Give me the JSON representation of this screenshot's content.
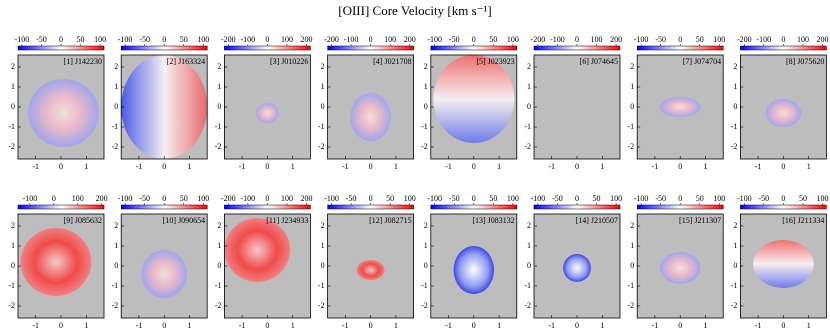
{
  "chart_data": {
    "type": "velocity-map-grid",
    "title": "[OIII] Core Velocity [km s⁻¹]",
    "xlim": [
      -1.7,
      1.7
    ],
    "ylim": [
      -2.6,
      2.6
    ],
    "xticks": [
      -1,
      0,
      1
    ],
    "yticks": [
      -2,
      -1,
      0,
      1,
      2
    ],
    "cmap": [
      "#0000ff",
      "#ffffff",
      "#ff0000"
    ],
    "background": "#bdbdbd",
    "panels": [
      {
        "label": "[1] J142230",
        "cblim": [
          -110,
          110
        ],
        "cbticks": [
          -100,
          -50,
          0,
          50,
          100
        ]
      },
      {
        "label": "[2] J163324",
        "cblim": [
          -110,
          110
        ],
        "cbticks": [
          -100,
          -50,
          0,
          50,
          100
        ]
      },
      {
        "label": "[3] J010226",
        "cblim": [
          -220,
          220
        ],
        "cbticks": [
          -200,
          -100,
          0,
          100,
          200
        ]
      },
      {
        "label": "[4] J021708",
        "cblim": [
          -220,
          220
        ],
        "cbticks": [
          -200,
          -100,
          0,
          100,
          200
        ]
      },
      {
        "label": "[5] J023923",
        "cblim": [
          -110,
          110
        ],
        "cbticks": [
          -100,
          -50,
          0,
          50,
          100
        ]
      },
      {
        "label": "[6] J074645",
        "cblim": [
          -220,
          220
        ],
        "cbticks": [
          -200,
          -100,
          0,
          100,
          200
        ]
      },
      {
        "label": "[7] J074704",
        "cblim": [
          -110,
          110
        ],
        "cbticks": [
          -100,
          -50,
          0,
          50,
          100
        ]
      },
      {
        "label": "[8] J075620",
        "cblim": [
          -220,
          220
        ],
        "cbticks": [
          -200,
          -100,
          0,
          100,
          200
        ]
      },
      {
        "label": "[9] J085632",
        "cblim": [
          -150,
          210
        ],
        "cbticks": [
          -100,
          0,
          100,
          200
        ]
      },
      {
        "label": "[10] J090654",
        "cblim": [
          -110,
          110
        ],
        "cbticks": [
          -100,
          -50,
          0,
          50,
          100
        ]
      },
      {
        "label": "[11] J234933",
        "cblim": [
          -220,
          220
        ],
        "cbticks": [
          -200,
          -100,
          0,
          100,
          200
        ]
      },
      {
        "label": "[12] J082715",
        "cblim": [
          -110,
          110
        ],
        "cbticks": [
          -100,
          -50,
          0,
          50,
          100
        ]
      },
      {
        "label": "[13] J083132",
        "cblim": [
          -110,
          110
        ],
        "cbticks": [
          -100,
          -50,
          0,
          50,
          100
        ]
      },
      {
        "label": "[14] J210507",
        "cblim": [
          -110,
          110
        ],
        "cbticks": [
          -100,
          -50,
          0,
          50,
          100
        ]
      },
      {
        "label": "[15] J211307",
        "cblim": [
          -110,
          110
        ],
        "cbticks": [
          -100,
          -50,
          0,
          50,
          100
        ]
      },
      {
        "label": "[16] J211334",
        "cblim": [
          -110,
          110
        ],
        "cbticks": [
          -100,
          -50,
          0,
          50,
          100
        ]
      }
    ]
  }
}
